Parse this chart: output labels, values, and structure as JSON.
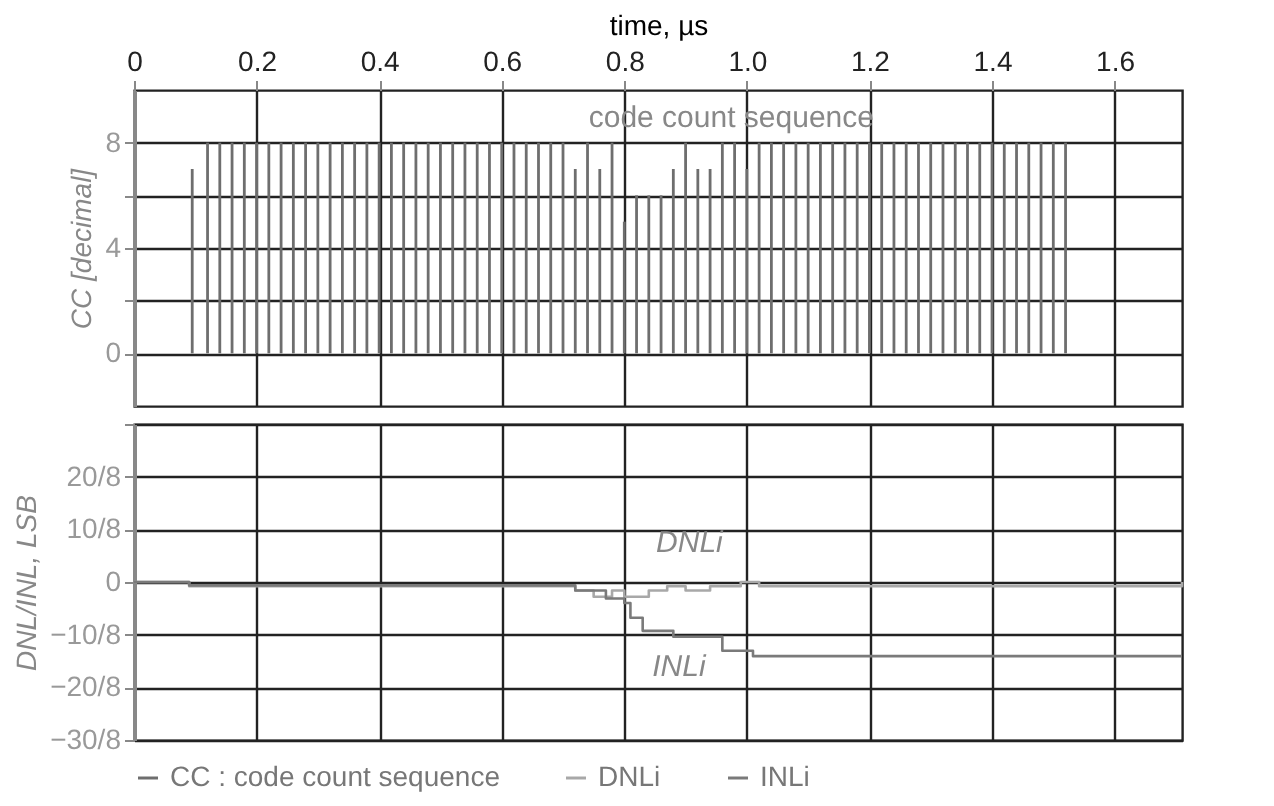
{
  "chart_data": [
    {
      "type": "bar",
      "xlabel": "time, µs",
      "ylabel": "CC [decimal]",
      "annotations": [
        "code count sequence"
      ],
      "xlim": [
        0,
        1.71
      ],
      "xticks": [
        0,
        0.2,
        0.4,
        0.6,
        0.8,
        {
          "value": 1,
          "label": "1.0"
        },
        1.2,
        1.4,
        1.6
      ],
      "ylim": [
        -2,
        10
      ],
      "yticks": [
        0,
        {
          "value": 2,
          "label": null
        },
        4,
        {
          "value": 6,
          "label": null
        },
        8
      ],
      "grid": true,
      "legend": "bottom",
      "x": [
        0.095,
        0.12,
        0.14,
        0.16,
        0.18,
        0.2,
        0.22,
        0.24,
        0.26,
        0.28,
        0.3,
        0.32,
        0.34,
        0.36,
        0.38,
        0.4,
        0.42,
        0.44,
        0.46,
        0.48,
        0.5,
        0.52,
        0.54,
        0.56,
        0.58,
        0.6,
        0.62,
        0.64,
        0.66,
        0.68,
        0.7,
        0.72,
        0.74,
        0.76,
        0.78,
        0.8,
        0.82,
        0.84,
        0.86,
        0.88,
        0.9,
        0.92,
        0.94,
        0.96,
        0.98,
        1.0,
        1.02,
        1.04,
        1.06,
        1.08,
        1.1,
        1.12,
        1.14,
        1.16,
        1.18,
        1.2,
        1.22,
        1.24,
        1.26,
        1.28,
        1.3,
        1.32,
        1.34,
        1.36,
        1.38,
        1.4,
        1.42,
        1.44,
        1.46,
        1.48,
        1.5,
        1.52
      ],
      "series": [
        {
          "name": "CC : code count sequence",
          "color": "#6e6e6e",
          "values": [
            7,
            8,
            8,
            8,
            8,
            8,
            8,
            8,
            8,
            8,
            8,
            8,
            8,
            8,
            8,
            8,
            8,
            8,
            8,
            8,
            8,
            8,
            8,
            8,
            8,
            8,
            8,
            8,
            8,
            8,
            8,
            7,
            8,
            7,
            8,
            5,
            6,
            6,
            6,
            7,
            8,
            7,
            7,
            8,
            8,
            7,
            8,
            8,
            8,
            8,
            8,
            8,
            8,
            8,
            8,
            8,
            8,
            8,
            8,
            8,
            8,
            8,
            8,
            8,
            8,
            8,
            8,
            8,
            8,
            8,
            8,
            8
          ]
        }
      ]
    },
    {
      "type": "step",
      "ylabel": "DNL/INL, LSB",
      "tick_labels": "y",
      "grid": true,
      "legend": "bottom",
      "annotations": [
        "DNLi",
        "INLi"
      ],
      "xlim": [
        0,
        1.71
      ],
      "xticks": [
        0,
        0.2,
        0.4,
        0.6,
        0.8,
        1,
        1.2,
        1.4,
        1.6
      ],
      "ylim": [
        -3.75,
        3.75
      ],
      "yticks": [
        {
          "value": -3.75,
          "label": "−30/8"
        },
        {
          "value": -2.5,
          "label": "−20/8"
        },
        {
          "value": -1.25,
          "label": "−10/8"
        },
        0,
        {
          "value": 1.25,
          "label": "10/8"
        },
        {
          "value": 2.5,
          "label": "20/8"
        },
        {
          "value": 3.75,
          "label": null
        }
      ],
      "series": [
        {
          "name": "DNLi",
          "color": "#a8a8a8",
          "x": [
            0,
            0.09,
            0.72,
            0.75,
            0.78,
            0.8,
            0.84,
            0.87,
            0.9,
            0.94,
            0.99,
            1.02,
            1.71
          ],
          "values": [
            0,
            -0.1,
            -0.2,
            -0.35,
            -0.2,
            -0.35,
            -0.2,
            -0.1,
            -0.2,
            -0.1,
            0,
            -0.1,
            0
          ]
        },
        {
          "name": "INLi",
          "color": "#7a7a7a",
          "x": [
            0,
            0.09,
            0.72,
            0.77,
            0.8,
            0.81,
            0.83,
            0.88,
            0.96,
            1.01,
            1.71
          ],
          "values": [
            0,
            -0.08,
            -0.2,
            -0.39,
            -0.5,
            -0.85,
            -1.16,
            -1.3,
            -1.63,
            -1.76,
            -1.76
          ]
        }
      ]
    }
  ]
}
